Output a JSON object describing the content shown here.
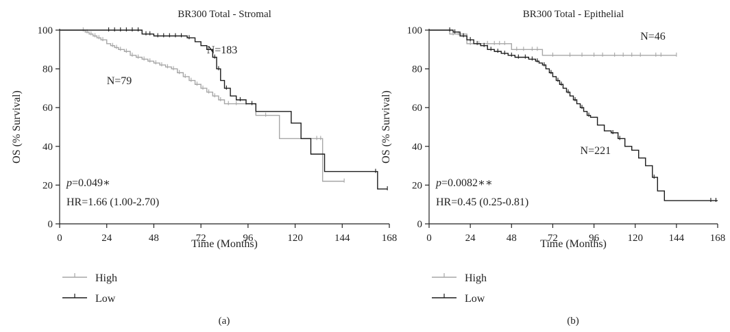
{
  "chart_data": [
    {
      "type": "line",
      "subtype": "kaplan-meier",
      "title": "BR300 Total - Stromal",
      "xlabel": "Time (Months)",
      "ylabel": "OS (% Survival)",
      "xlim": [
        0,
        168
      ],
      "ylim": [
        0,
        100
      ],
      "xticks": [
        0,
        24,
        48,
        72,
        96,
        120,
        144,
        168
      ],
      "yticks": [
        0,
        20,
        40,
        60,
        80,
        100
      ],
      "grid": false,
      "legend": {
        "position": "bottom-left",
        "entries": [
          "High",
          "Low"
        ]
      },
      "caption": "(a)",
      "pvalue_text": "=0.049",
      "pvalue_symbol": "p",
      "pvalue_stars": "∗",
      "hr_text": "HR=1.66 (1.00-2.70)",
      "series": [
        {
          "name": "High",
          "color": "#a6a6a6",
          "n_label": "N=79",
          "label_at": [
            24,
            72
          ],
          "x": [
            0,
            11,
            13,
            15,
            17,
            19,
            21,
            24,
            26,
            28,
            30,
            33,
            36,
            39,
            42,
            45,
            48,
            51,
            54,
            57,
            60,
            63,
            66,
            69,
            72,
            75,
            78,
            81,
            84,
            100,
            110,
            112,
            132,
            134,
            145
          ],
          "y": [
            100,
            100,
            99,
            98,
            97,
            96,
            95,
            93,
            92,
            91,
            90,
            89,
            87,
            86,
            85,
            84,
            83,
            82,
            81,
            80,
            78,
            76,
            74,
            72,
            70,
            68,
            66,
            64,
            62,
            56,
            56,
            44,
            44,
            22,
            22
          ],
          "censor_x": [
            12,
            14,
            16,
            18,
            20,
            22,
            27,
            29,
            31,
            34,
            37,
            40,
            43,
            46,
            49,
            52,
            55,
            58,
            61,
            64,
            67,
            70,
            73,
            76,
            79,
            82,
            86,
            90,
            95,
            105,
            131,
            133,
            145
          ]
        },
        {
          "name": "Low",
          "color": "#1a1a1a",
          "n_label": "N=183",
          "label_at": [
            75,
            88
          ],
          "x": [
            0,
            23,
            42,
            48,
            65,
            69,
            72,
            75,
            78,
            80,
            82,
            84,
            87,
            90,
            95,
            100,
            112,
            118,
            123,
            128,
            135,
            162,
            167
          ],
          "y": [
            100,
            100,
            98,
            97,
            96,
            94,
            92,
            90,
            86,
            80,
            74,
            70,
            66,
            64,
            62,
            58,
            58,
            52,
            44,
            36,
            27,
            18,
            18
          ],
          "censor_x": [
            25,
            28,
            31,
            34,
            37,
            40,
            44,
            46,
            50,
            53,
            56,
            59,
            62,
            66,
            79,
            81,
            85,
            92,
            98,
            161,
            167
          ]
        }
      ]
    },
    {
      "type": "line",
      "subtype": "kaplan-meier",
      "title": "BR300 Total - Epithelial",
      "xlabel": "Time (Months)",
      "ylabel": "OS (% Survival)",
      "xlim": [
        0,
        168
      ],
      "ylim": [
        0,
        100
      ],
      "xticks": [
        0,
        24,
        48,
        72,
        96,
        120,
        144,
        168
      ],
      "yticks": [
        0,
        20,
        40,
        60,
        80,
        100
      ],
      "grid": false,
      "legend": {
        "position": "bottom-left",
        "entries": [
          "High",
          "Low"
        ]
      },
      "caption": "(b)",
      "pvalue_text": "=0.0082",
      "pvalue_symbol": "p",
      "pvalue_stars": "∗∗",
      "hr_text": "HR=0.45 (0.25-0.81)",
      "series": [
        {
          "name": "High",
          "color": "#a6a6a6",
          "n_label": "N=46",
          "label_at": [
            123,
            95
          ],
          "x": [
            0,
            10,
            12,
            20,
            22,
            46,
            48,
            64,
            66,
            144
          ],
          "y": [
            100,
            100,
            98,
            98,
            93,
            93,
            90,
            90,
            87,
            87
          ],
          "censor_x": [
            14,
            17,
            24,
            29,
            34,
            38,
            41,
            44,
            51,
            55,
            60,
            63,
            72,
            82,
            89,
            96,
            101,
            108,
            113,
            118,
            123,
            132,
            135,
            144
          ]
        },
        {
          "name": "Low",
          "color": "#1a1a1a",
          "n_label": "N=221",
          "label_at": [
            88,
            36
          ],
          "x": [
            0,
            10,
            14,
            18,
            22,
            26,
            30,
            34,
            38,
            42,
            46,
            50,
            54,
            58,
            62,
            64,
            66,
            68,
            70,
            72,
            74,
            76,
            78,
            80,
            82,
            84,
            86,
            88,
            90,
            92,
            94,
            98,
            102,
            106,
            110,
            114,
            118,
            122,
            126,
            130,
            133,
            137,
            164,
            168
          ],
          "y": [
            100,
            100,
            99,
            97,
            95,
            93,
            92,
            90,
            89,
            88,
            87,
            86,
            86,
            85,
            84,
            83,
            82,
            80,
            78,
            76,
            74,
            72,
            70,
            68,
            66,
            64,
            62,
            60,
            58,
            56,
            55,
            51,
            48,
            47,
            44,
            40,
            38,
            34,
            30,
            24,
            17,
            12,
            12,
            12
          ],
          "censor_x": [
            12,
            15,
            20,
            24,
            28,
            32,
            36,
            40,
            44,
            48,
            52,
            56,
            60,
            63,
            67,
            71,
            75,
            77,
            81,
            85,
            89,
            93,
            107,
            111,
            131,
            164,
            167
          ]
        }
      ]
    }
  ]
}
